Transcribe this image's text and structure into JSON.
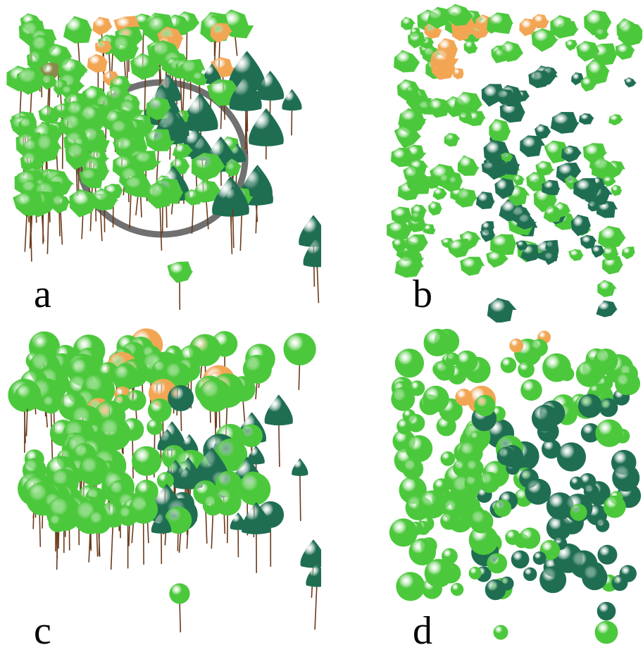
{
  "panels": [
    {
      "id": "a",
      "label": "a",
      "view": "oblique",
      "crown_shape": "irregular",
      "ring": true
    },
    {
      "id": "b",
      "label": "b",
      "view": "top",
      "crown_shape": "irregular",
      "ring": false
    },
    {
      "id": "c",
      "label": "c",
      "view": "oblique",
      "crown_shape": "sphere",
      "ring": false
    },
    {
      "id": "d",
      "label": "d",
      "view": "top",
      "crown_shape": "sphere",
      "ring": false
    }
  ],
  "colors": {
    "light_green": "#4cc83c",
    "dark_green": "#1f6e52",
    "orange": "#f2a654",
    "olive": "#8a8a4a",
    "trunk": "#6a3a1a",
    "ring": "#707070"
  }
}
